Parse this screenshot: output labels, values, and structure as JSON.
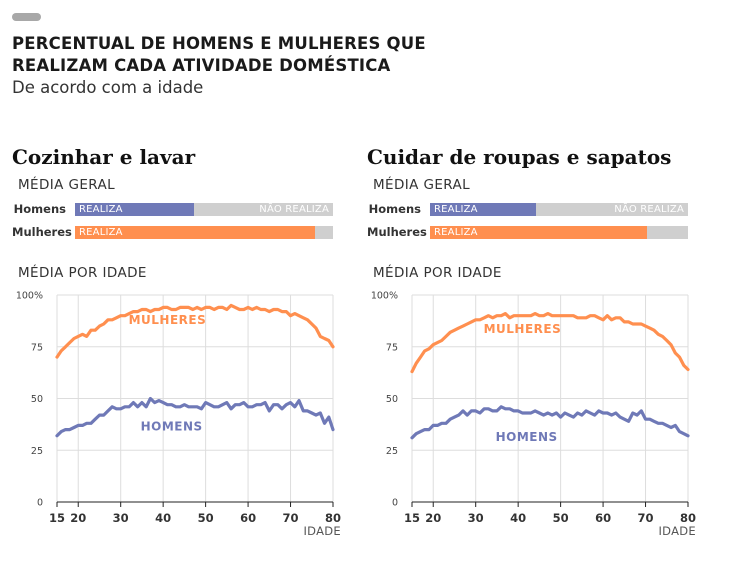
{
  "header": {
    "title_line1": "PERCENTUAL DE HOMENS E MULHERES QUE",
    "title_line2": "REALIZAM CADA ATIVIDADE DOMÉSTICA",
    "subtitle": "De acordo com a idade"
  },
  "labels": {
    "media_geral": "MÉDIA GERAL",
    "media_por_idade": "MÉDIA POR IDADE",
    "homens_row": "Homens",
    "mulheres_row": "Mulheres",
    "realiza": "REALIZA",
    "nao_realiza": "NÃO REALIZA"
  },
  "colors": {
    "men": "#6f79b7",
    "women": "#ff8f4f",
    "track": "#cfcfcf",
    "grid": "#dddddd"
  },
  "chart_data": [
    {
      "type": "line",
      "title": "Cozinhar e lavar",
      "bars": {
        "Homens": 0.46,
        "Mulheres": 0.93
      },
      "x_ticks": [
        15,
        20,
        30,
        40,
        50,
        60,
        70,
        80
      ],
      "xlabel": "IDADE",
      "y_ticks": [
        0,
        25,
        50,
        75,
        100
      ],
      "y_tick_labels": [
        "0",
        "25",
        "50",
        "75",
        "100%"
      ],
      "xlim": [
        15,
        80
      ],
      "ylim": [
        0,
        100
      ],
      "grid": true,
      "series": [
        {
          "name": "MULHERES",
          "color": "#ff8f4f",
          "label_at": [
            41,
            88
          ],
          "x": [
            15,
            16,
            17,
            18,
            19,
            20,
            21,
            22,
            23,
            24,
            25,
            26,
            27,
            28,
            29,
            30,
            31,
            32,
            33,
            34,
            35,
            36,
            37,
            38,
            39,
            40,
            41,
            42,
            43,
            44,
            45,
            46,
            47,
            48,
            49,
            50,
            51,
            52,
            53,
            54,
            55,
            56,
            57,
            58,
            59,
            60,
            61,
            62,
            63,
            64,
            65,
            66,
            67,
            68,
            69,
            70,
            71,
            72,
            73,
            74,
            75,
            76,
            77,
            78,
            79,
            80
          ],
          "values": [
            70,
            73,
            75,
            77,
            79,
            80,
            81,
            80,
            83,
            83,
            85,
            86,
            88,
            88,
            89,
            90,
            90,
            91,
            92,
            92,
            93,
            93,
            92,
            93,
            93,
            94,
            94,
            93,
            93,
            94,
            94,
            94,
            93,
            94,
            93,
            94,
            94,
            93,
            94,
            94,
            93,
            95,
            94,
            93,
            93,
            94,
            93,
            94,
            93,
            93,
            92,
            93,
            93,
            92,
            92,
            90,
            91,
            90,
            89,
            88,
            86,
            84,
            80,
            79,
            78,
            75
          ]
        },
        {
          "name": "HOMENS",
          "color": "#6f79b7",
          "label_at": [
            42,
            36.5
          ],
          "x": [
            15,
            16,
            17,
            18,
            19,
            20,
            21,
            22,
            23,
            24,
            25,
            26,
            27,
            28,
            29,
            30,
            31,
            32,
            33,
            34,
            35,
            36,
            37,
            38,
            39,
            40,
            41,
            42,
            43,
            44,
            45,
            46,
            47,
            48,
            49,
            50,
            51,
            52,
            53,
            54,
            55,
            56,
            57,
            58,
            59,
            60,
            61,
            62,
            63,
            64,
            65,
            66,
            67,
            68,
            69,
            70,
            71,
            72,
            73,
            74,
            75,
            76,
            77,
            78,
            79,
            80
          ],
          "values": [
            32,
            34,
            35,
            35,
            36,
            37,
            37,
            38,
            38,
            40,
            42,
            42,
            44,
            46,
            45,
            45,
            46,
            46,
            48,
            46,
            48,
            46,
            50,
            48,
            49,
            48,
            47,
            47,
            46,
            46,
            47,
            46,
            46,
            46,
            45,
            48,
            47,
            46,
            46,
            47,
            48,
            45,
            47,
            47,
            48,
            46,
            46,
            47,
            47,
            48,
            44,
            47,
            47,
            45,
            47,
            48,
            46,
            49,
            44,
            44,
            43,
            42,
            43,
            38,
            41,
            35
          ]
        }
      ]
    },
    {
      "type": "line",
      "title": "Cuidar de roupas e sapatos",
      "bars": {
        "Homens": 0.41,
        "Mulheres": 0.84
      },
      "x_ticks": [
        15,
        20,
        30,
        40,
        50,
        60,
        70,
        80
      ],
      "xlabel": "IDADE",
      "y_ticks": [
        0,
        25,
        50,
        75,
        100
      ],
      "y_tick_labels": [
        "0",
        "25",
        "50",
        "75",
        "100%"
      ],
      "xlim": [
        15,
        80
      ],
      "ylim": [
        0,
        100
      ],
      "grid": true,
      "series": [
        {
          "name": "MULHERES",
          "color": "#ff8f4f",
          "label_at": [
            41,
            83.5
          ],
          "x": [
            15,
            16,
            17,
            18,
            19,
            20,
            21,
            22,
            23,
            24,
            25,
            26,
            27,
            28,
            29,
            30,
            31,
            32,
            33,
            34,
            35,
            36,
            37,
            38,
            39,
            40,
            41,
            42,
            43,
            44,
            45,
            46,
            47,
            48,
            49,
            50,
            51,
            52,
            53,
            54,
            55,
            56,
            57,
            58,
            59,
            60,
            61,
            62,
            63,
            64,
            65,
            66,
            67,
            68,
            69,
            70,
            71,
            72,
            73,
            74,
            75,
            76,
            77,
            78,
            79,
            80
          ],
          "values": [
            63,
            67,
            70,
            73,
            74,
            76,
            77,
            78,
            80,
            82,
            83,
            84,
            85,
            86,
            87,
            88,
            88,
            89,
            90,
            89,
            90,
            90,
            91,
            89,
            90,
            90,
            90,
            90,
            90,
            91,
            90,
            90,
            91,
            90,
            90,
            90,
            90,
            90,
            90,
            89,
            89,
            89,
            90,
            90,
            89,
            88,
            90,
            88,
            89,
            89,
            87,
            87,
            86,
            86,
            86,
            85,
            84,
            83,
            81,
            80,
            78,
            76,
            72,
            70,
            66,
            64
          ]
        },
        {
          "name": "HOMENS",
          "color": "#6f79b7",
          "label_at": [
            42,
            31.5
          ],
          "x": [
            15,
            16,
            17,
            18,
            19,
            20,
            21,
            22,
            23,
            24,
            25,
            26,
            27,
            28,
            29,
            30,
            31,
            32,
            33,
            34,
            35,
            36,
            37,
            38,
            39,
            40,
            41,
            42,
            43,
            44,
            45,
            46,
            47,
            48,
            49,
            50,
            51,
            52,
            53,
            54,
            55,
            56,
            57,
            58,
            59,
            60,
            61,
            62,
            63,
            64,
            65,
            66,
            67,
            68,
            69,
            70,
            71,
            72,
            73,
            74,
            75,
            76,
            77,
            78,
            79,
            80
          ],
          "values": [
            31,
            33,
            34,
            35,
            35,
            37,
            37,
            38,
            38,
            40,
            41,
            42,
            44,
            42,
            44,
            44,
            43,
            45,
            45,
            44,
            44,
            46,
            45,
            45,
            44,
            44,
            43,
            43,
            43,
            44,
            43,
            42,
            43,
            42,
            43,
            41,
            43,
            42,
            41,
            43,
            42,
            44,
            43,
            42,
            44,
            43,
            43,
            42,
            43,
            41,
            40,
            39,
            43,
            42,
            44,
            40,
            40,
            39,
            38,
            38,
            37,
            36,
            37,
            34,
            33,
            32
          ]
        }
      ]
    }
  ]
}
